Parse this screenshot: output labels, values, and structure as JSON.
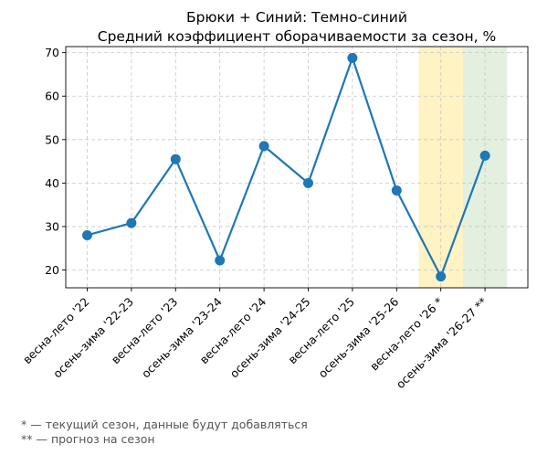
{
  "chart_data": {
    "type": "line",
    "title": "Брюки + Синий: Темно-синий",
    "subtitle": "Средний коэффициент оборачиваемости за сезон, %",
    "xlabel": "",
    "ylabel": "",
    "categories": [
      "весна-лето '22",
      "осень-зима '22-23",
      "весна-лето '23",
      "осень-зима '23-24",
      "весна-лето '24",
      "осень-зима '24-25",
      "весна-лето '25",
      "осень-зима '25-26",
      "весна-лето '26 *",
      "осень-зима '26-27 **"
    ],
    "values": [
      28.0,
      30.8,
      45.5,
      22.2,
      48.5,
      40.0,
      68.8,
      38.3,
      18.5,
      46.3
    ],
    "ylim": [
      15.9,
      71.4
    ],
    "yticks": [
      20,
      30,
      40,
      50,
      60,
      70
    ],
    "grid": true,
    "line_color": "#1f77b4",
    "highlights": [
      {
        "category_index": 8,
        "color": "#fff3c4",
        "meaning": "current"
      },
      {
        "category_index": 9,
        "color": "#e3f0df",
        "meaning": "forecast"
      }
    ]
  },
  "footnotes": [
    "* — текущий сезон, данные будут добавляться",
    "** — прогноз на сезон"
  ]
}
